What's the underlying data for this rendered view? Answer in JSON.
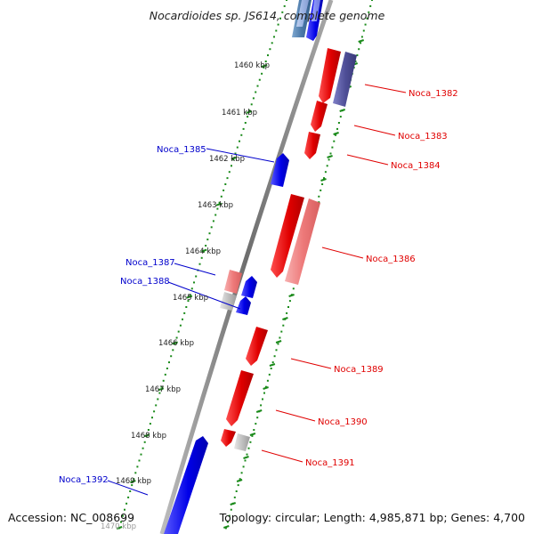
{
  "title": "Nocardioides sp. JS614, complete genome",
  "footer": {
    "accession": "Accession: NC_008699",
    "topology": "Topology: circular; Length: 4,985,871 bp; Genes: 4,700"
  },
  "colors": {
    "forward_strand": "#e00000",
    "reverse_strand": "#0000e0",
    "backbone": "#808080",
    "tick": "#1a8a1a",
    "background": "#ffffff"
  },
  "scale_labels": [
    "1460 kbp",
    "1461 kbp",
    "1462 kbp",
    "1463 kbp",
    "1464 kbp",
    "1465 kbp",
    "1466 kbp",
    "1467 kbp",
    "1468 kbp",
    "1469 kbp",
    "1470 kbp"
  ],
  "gene_labels": [
    {
      "name": "Noca_1382",
      "strand": "forward"
    },
    {
      "name": "Noca_1383",
      "strand": "forward"
    },
    {
      "name": "Noca_1384",
      "strand": "forward"
    },
    {
      "name": "Noca_1385",
      "strand": "reverse"
    },
    {
      "name": "Noca_1386",
      "strand": "forward"
    },
    {
      "name": "Noca_1387",
      "strand": "reverse"
    },
    {
      "name": "Noca_1388",
      "strand": "reverse"
    },
    {
      "name": "Noca_1389",
      "strand": "forward"
    },
    {
      "name": "Noca_1390",
      "strand": "forward"
    },
    {
      "name": "Noca_1391",
      "strand": "forward"
    },
    {
      "name": "Noca_1392",
      "strand": "reverse"
    }
  ]
}
